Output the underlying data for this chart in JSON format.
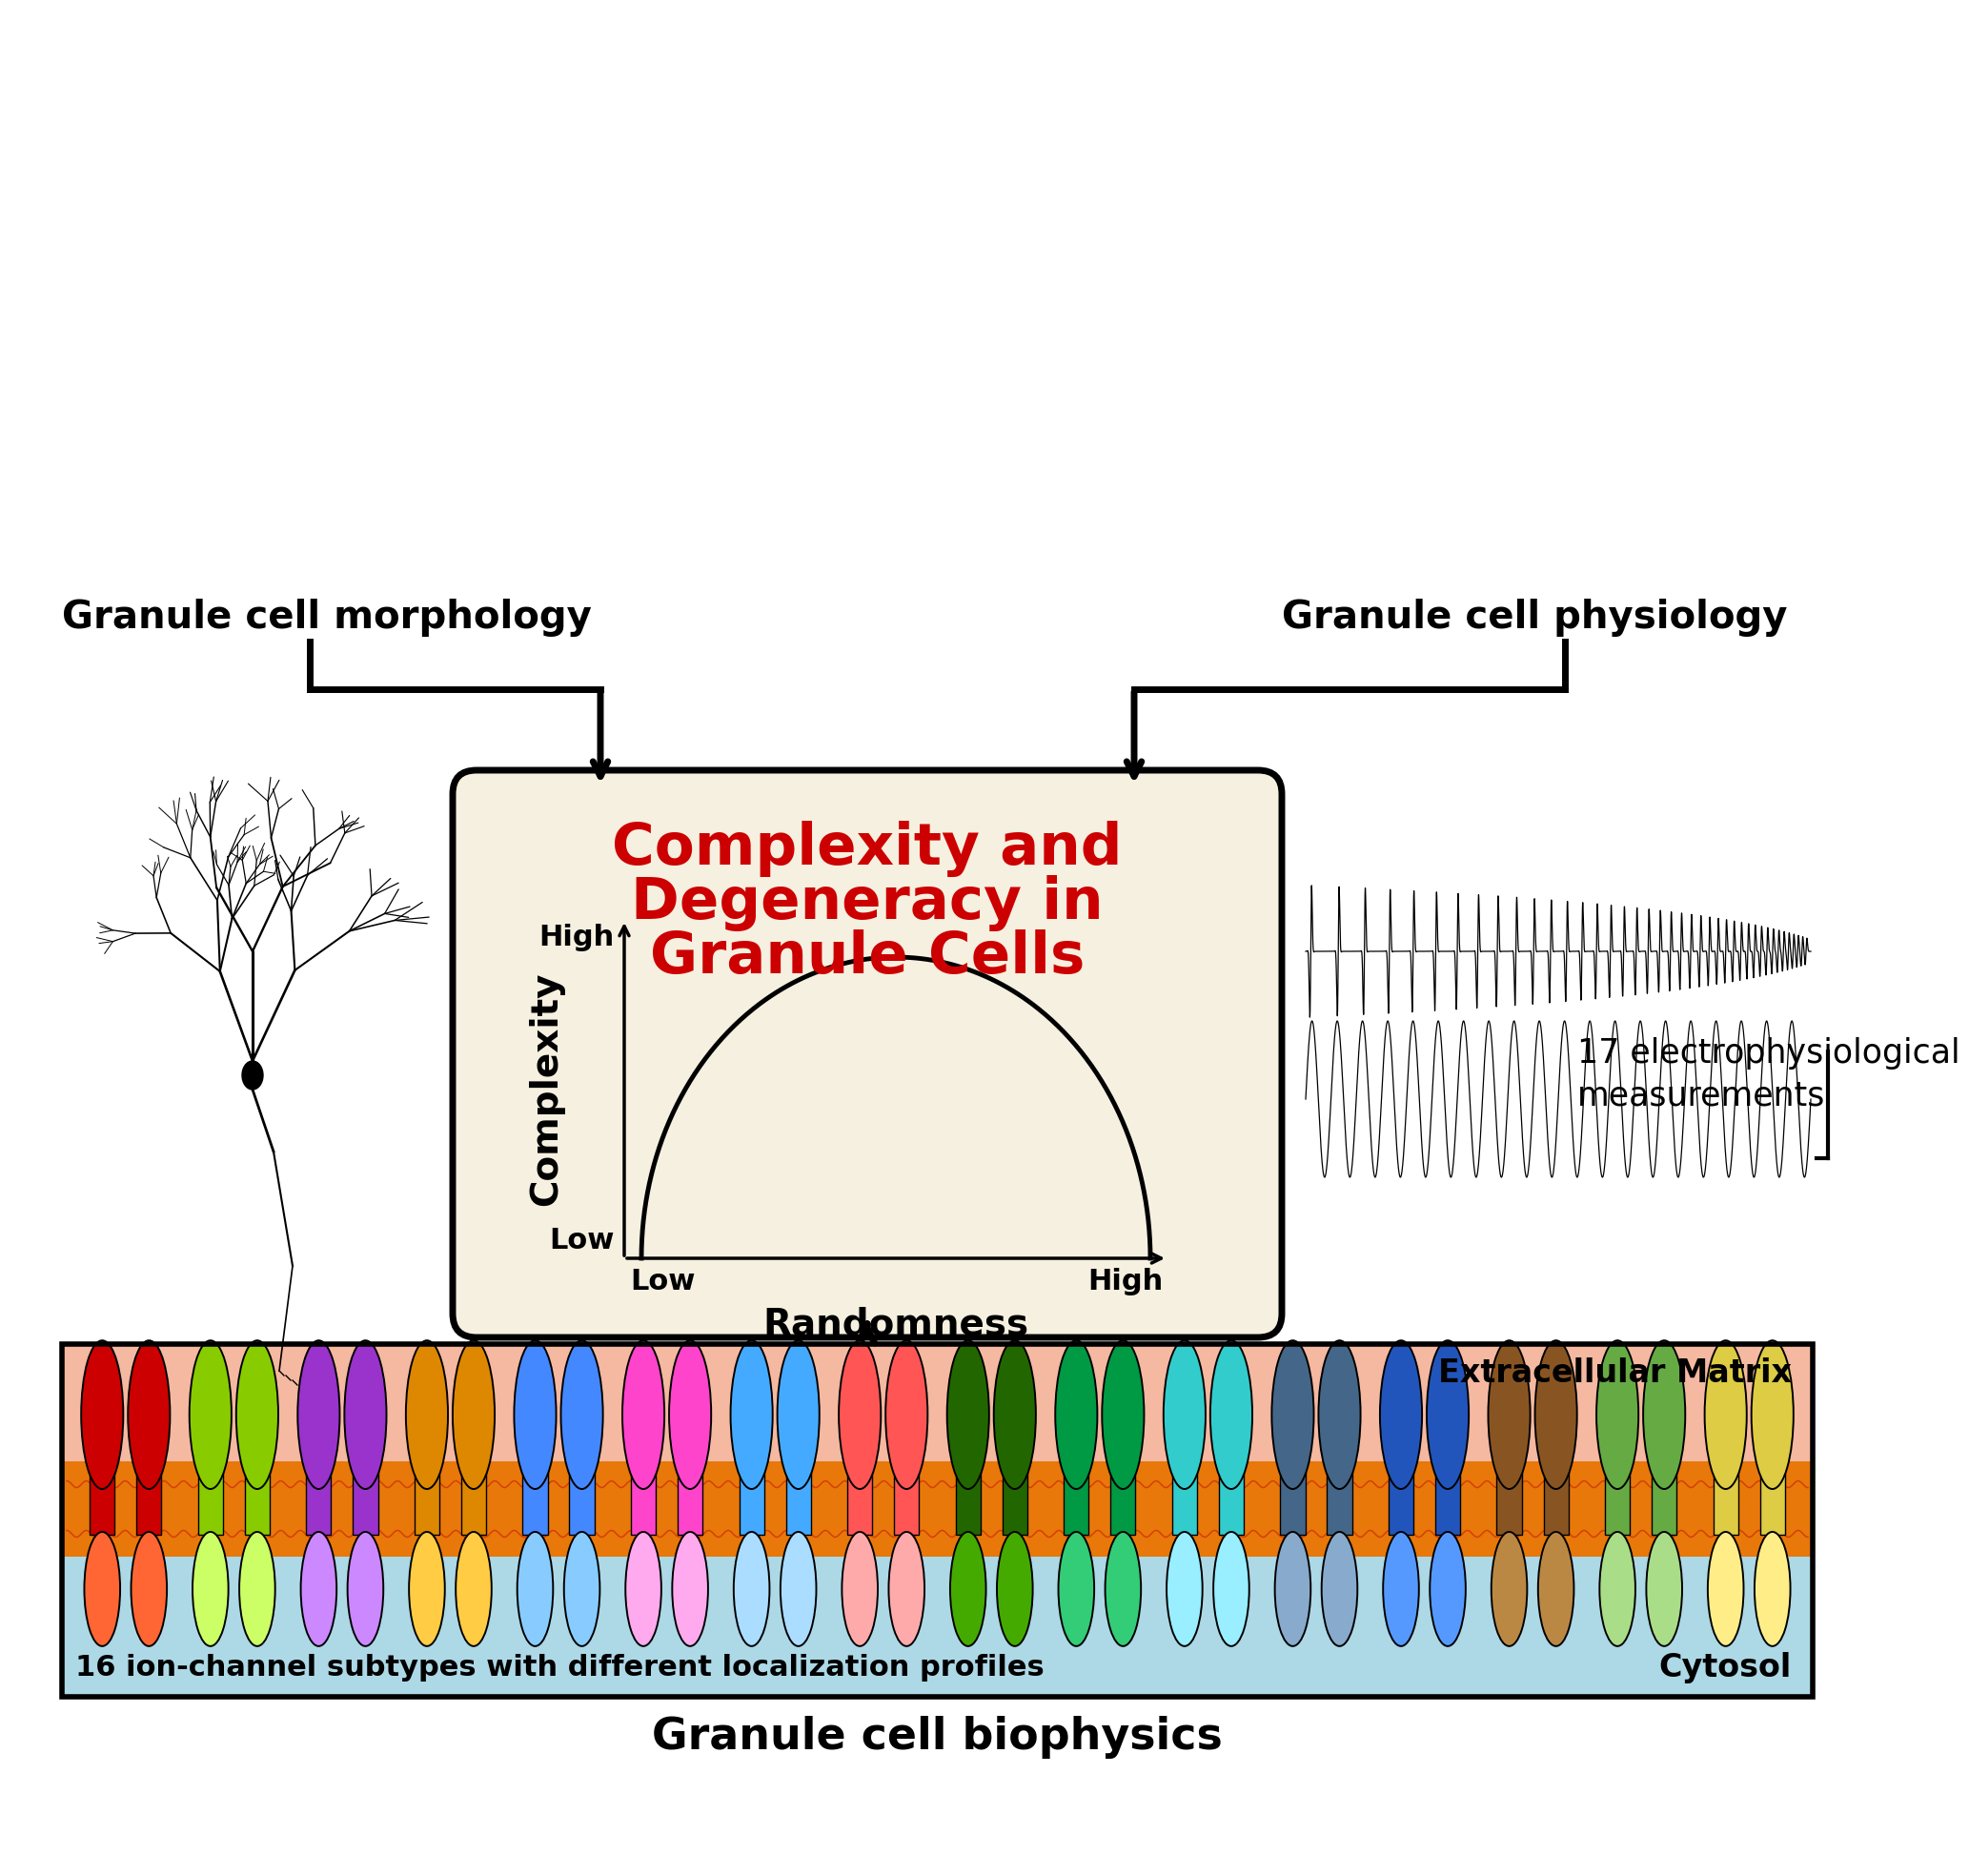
{
  "bg_color": "#ffffff",
  "center_box_bg": "#f5f0e0",
  "center_title_line1": "Complexity and",
  "center_title_line2": "Degeneracy in",
  "center_title_line3": "Granule Cells",
  "center_title_color": "#cc0000",
  "xlabel": "Randomness",
  "ylabel": "Complexity",
  "x_low": "Low",
  "x_high": "High",
  "y_low": "Low",
  "y_high": "High",
  "label_morphology": "Granule cell morphology",
  "label_physiology": "Granule cell physiology",
  "label_biophysics": "Granule cell biophysics",
  "label_measurements": "17 electrophysiological\nmeasurements",
  "label_ion_channels": "16 ion-channel subtypes with different localization profiles",
  "label_cytosol": "Cytosol",
  "label_extracellular": "Extracellular Matrix",
  "membrane_top_color": "#f5b8a0",
  "membrane_bottom_color": "#add8e6",
  "lipid_color": "#e8780a",
  "lipid_line_color": "#cc2200",
  "channel_pairs": [
    [
      "#cc0000",
      "#ff6633"
    ],
    [
      "#88cc00",
      "#ccff66"
    ],
    [
      "#9933cc",
      "#cc88ff"
    ],
    [
      "#dd8800",
      "#ffcc44"
    ],
    [
      "#4488ff",
      "#88ccff"
    ],
    [
      "#ff44cc",
      "#ffaaee"
    ],
    [
      "#44aaff",
      "#aaddff"
    ],
    [
      "#ff5555",
      "#ffaaaa"
    ],
    [
      "#226600",
      "#44aa00"
    ],
    [
      "#009944",
      "#33cc77"
    ],
    [
      "#33cccc",
      "#99eeff"
    ],
    [
      "#446688",
      "#88aacc"
    ],
    [
      "#2255bb",
      "#5599ff"
    ],
    [
      "#885522",
      "#bb8844"
    ],
    [
      "#66aa44",
      "#aadd88"
    ],
    [
      "#ddcc44",
      "#ffee88"
    ]
  ]
}
